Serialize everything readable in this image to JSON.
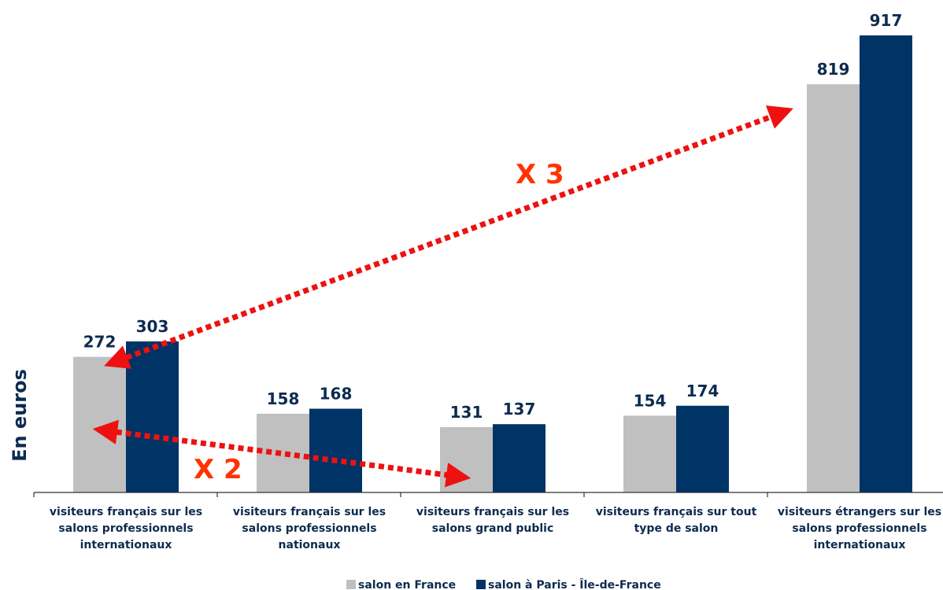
{
  "chart_data": {
    "type": "bar",
    "ylabel": "En euros",
    "ylim": [
      0,
      980
    ],
    "grid": false,
    "legend_position": "bottom",
    "categories": [
      [
        "visiteurs français sur les",
        "salons professionnels",
        "internationaux"
      ],
      [
        "visiteurs français sur les",
        "salons professionnels",
        "nationaux"
      ],
      [
        "visiteurs français sur les",
        "salons grand public"
      ],
      [
        "visiteurs français sur tout",
        "type de salon"
      ],
      [
        "visiteurs étrangers sur les",
        "salons professionnels",
        "internationaux"
      ]
    ],
    "series": [
      {
        "name": "salon en France",
        "color": "#c0c0c0",
        "values": [
          272,
          158,
          131,
          154,
          819
        ]
      },
      {
        "name": "salon à Paris - Île-de-France",
        "color": "#003366",
        "values": [
          303,
          168,
          137,
          174,
          917
        ]
      }
    ],
    "annotations": [
      {
        "text": "X 3",
        "color": "#ff3300"
      },
      {
        "text": "X 2",
        "color": "#ff3300"
      }
    ],
    "label_color": "#0d2b4f",
    "arrow_color": "#ee1111"
  }
}
